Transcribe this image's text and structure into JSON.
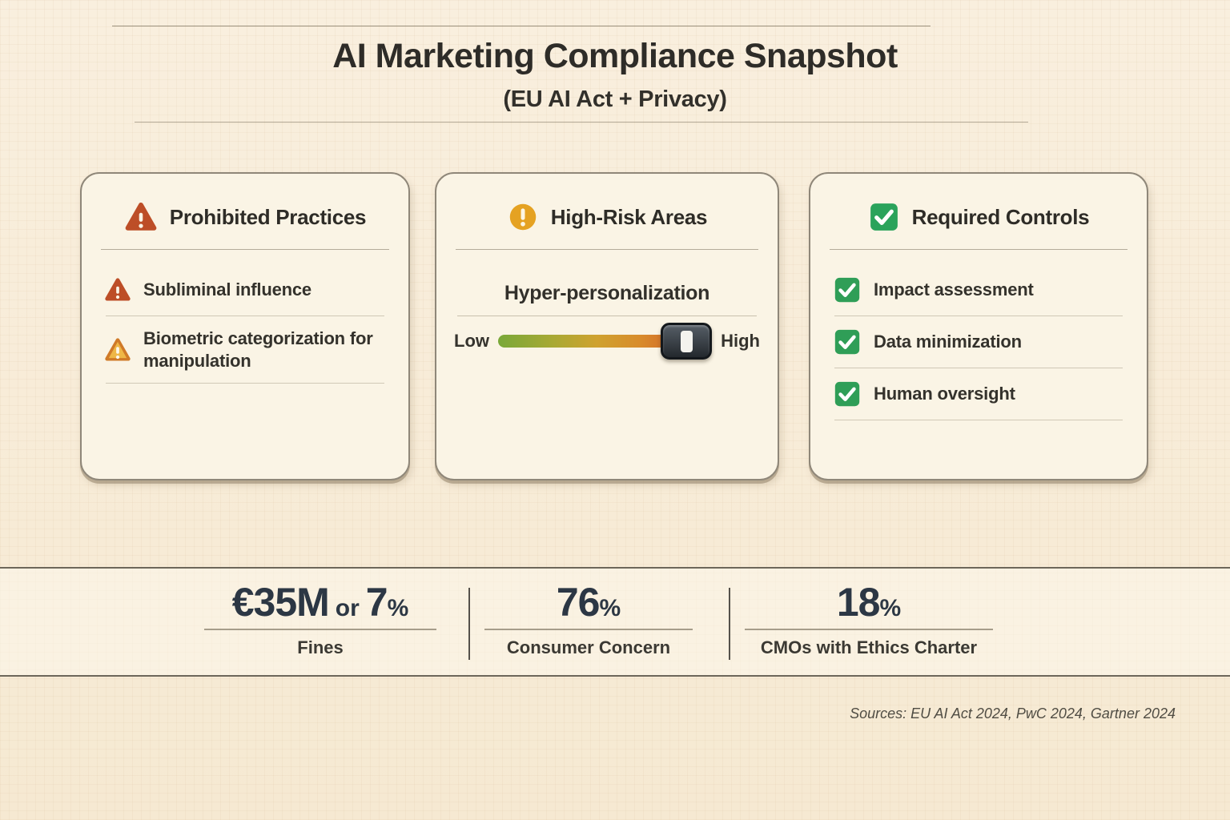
{
  "header": {
    "title": "AI Marketing Compliance Snapshot",
    "subtitle": "(EU AI Act + Privacy)"
  },
  "cards": {
    "prohibited": {
      "title": "Prohibited Practices",
      "icon": "warning-triangle-red",
      "items": [
        {
          "icon": "warning-triangle-red",
          "label": "Subliminal influence"
        },
        {
          "icon": "warning-triangle-yellow",
          "label": "Biometric categorization for manipulation"
        }
      ]
    },
    "high_risk": {
      "title": "High-Risk Areas",
      "icon": "exclamation-circle-amber",
      "risk_item": {
        "label": "Hyper-personalization",
        "scale_low": "Low",
        "scale_high": "High",
        "slider_pct": 88
      }
    },
    "required": {
      "title": "Required Controls",
      "icon": "checkbox-green",
      "items": [
        {
          "icon": "checkbox-green",
          "label": "Impact assessment"
        },
        {
          "icon": "checkbox-green",
          "label": "Data minimization"
        },
        {
          "icon": "checkbox-green",
          "label": "Human oversight"
        }
      ]
    }
  },
  "stats": [
    {
      "value": "€35M",
      "connector": "or",
      "value2": "7",
      "suffix": "%",
      "label": "Fines"
    },
    {
      "value": "76",
      "suffix": "%",
      "label": "Consumer Concern"
    },
    {
      "value": "18",
      "suffix": "%",
      "label": "CMOs with Ethics Charter"
    }
  ],
  "footer": {
    "sources": "Sources: EU AI Act 2024, PwC 2024, Gartner 2024"
  },
  "colors": {
    "background": "#f8edd9",
    "card_background": "#faf4e5",
    "card_border": "#8f8779",
    "accent_red": "#bd4e27",
    "accent_yellow": "#e9a93c",
    "accent_amber": "#e5a222",
    "accent_green": "#2aa35b",
    "stat_number": "#2c3744",
    "slider_gradient_low": "#79a838",
    "slider_gradient_high": "#c8552a"
  }
}
